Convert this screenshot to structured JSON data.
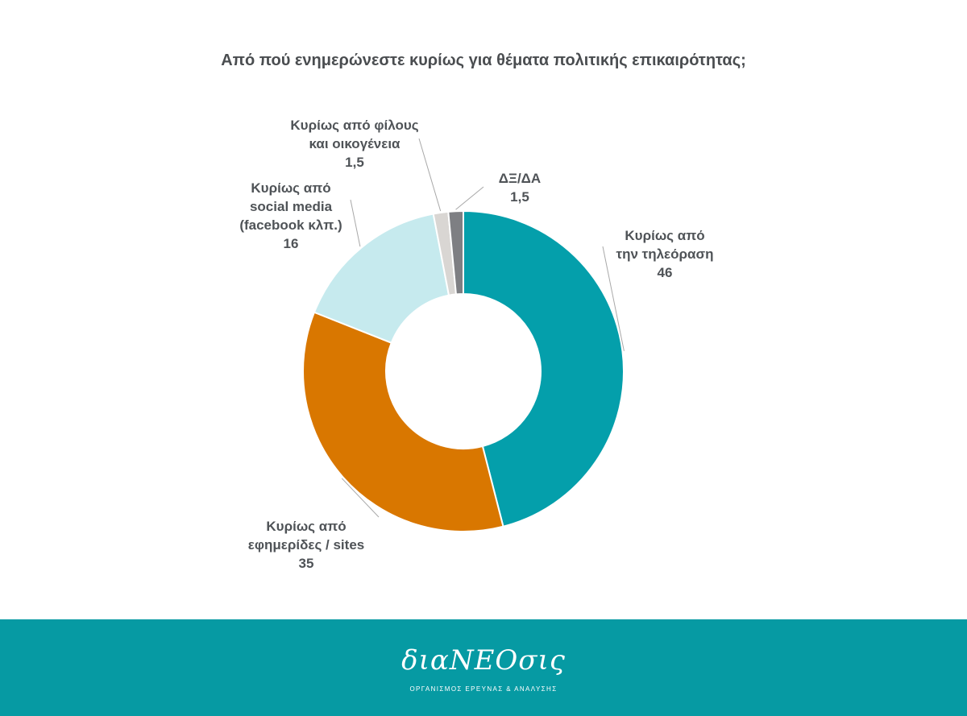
{
  "title": "Από πού ενημερώνεστε κυρίως για θέματα πολιτικής επικαιρότητας;",
  "chart_data": {
    "type": "pie",
    "donut": true,
    "title": "Από πού ενημερώνεστε κυρίως για θέματα πολιτικής επικαιρότητας;",
    "slices": [
      {
        "label": "Κυρίως από την τηλεόραση",
        "value": 46,
        "value_label": "46",
        "color": "#049fab"
      },
      {
        "label": "Κυρίως από εφημερίδες / sites",
        "value": 35,
        "value_label": "35",
        "color": "#d97700"
      },
      {
        "label": "Κυρίως από social media (facebook κλπ.)",
        "value": 16,
        "value_label": "16",
        "color": "#c6eaee"
      },
      {
        "label": "Κυρίως από φίλους και οικογένεια",
        "value": 1.5,
        "value_label": "1,5",
        "color": "#d9d6d3"
      },
      {
        "label": "ΔΞ/ΔΑ",
        "value": 1.5,
        "value_label": "1,5",
        "color": "#7e7f83"
      }
    ]
  },
  "labels": {
    "tv": {
      "line1": "Κυρίως από",
      "line2": "την τηλεόραση",
      "value": "46"
    },
    "papers": {
      "line1": "Κυρίως από",
      "line2": "εφημερίδες / sites",
      "value": "35"
    },
    "social": {
      "line1": "Κυρίως από",
      "line2": "social media",
      "line3": "(facebook κλπ.)",
      "value": "16"
    },
    "friends": {
      "line1": "Κυρίως από φίλους",
      "line2": "και οικογένεια",
      "value": "1,5"
    },
    "dkna": {
      "line1": "ΔΞ/ΔΑ",
      "value": "1,5"
    }
  },
  "footer": {
    "brand": "διαΝΕΟσις",
    "tagline": "ΟΡΓΑΝΙΣΜΟΣ ΕΡΕΥΝΑΣ & ΑΝΑΛΥΣΗΣ",
    "background": "#069aa3"
  }
}
